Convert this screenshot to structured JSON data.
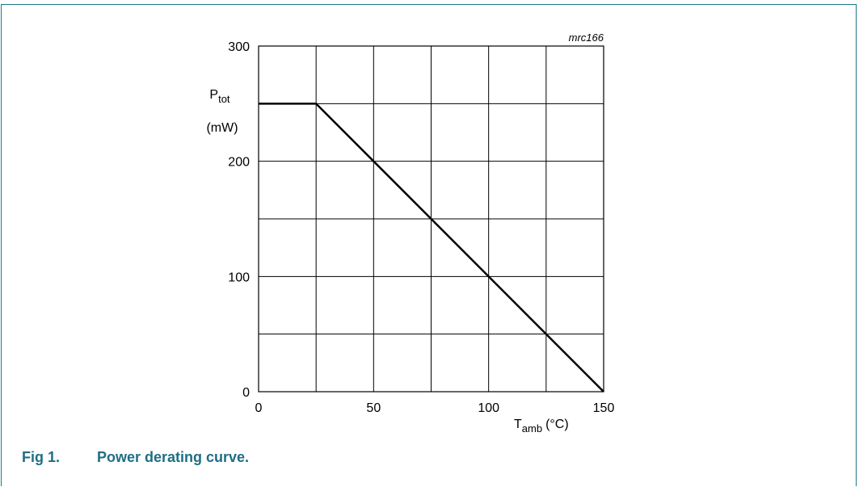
{
  "figure": {
    "number": "Fig 1.",
    "caption": "Power derating curve.",
    "code": "mrc166",
    "accent_color": "#1f6e84"
  },
  "chart_data": {
    "type": "line",
    "title": "",
    "xlabel": {
      "main": "T",
      "sub": "amb",
      "unit": "(°C)"
    },
    "ylabel": {
      "main": "P",
      "sub": "tot",
      "unit": "(mW)"
    },
    "xlim": [
      0,
      150
    ],
    "ylim": [
      0,
      300
    ],
    "x_ticks": [
      0,
      50,
      100,
      150
    ],
    "y_ticks": [
      0,
      100,
      200,
      300
    ],
    "x_grid_step": 25,
    "y_grid_step": 50,
    "grid": true,
    "series": [
      {
        "x": [
          0,
          25,
          150
        ],
        "y": [
          250,
          250,
          0
        ]
      }
    ]
  }
}
